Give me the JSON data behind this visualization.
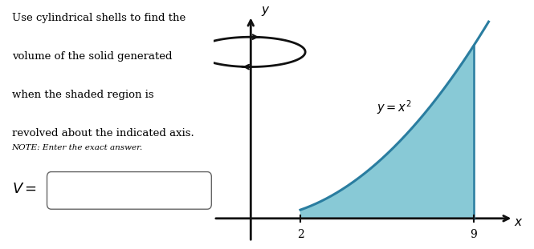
{
  "title_lines": [
    "Use cylindrical shells to find the",
    "volume of the solid generated",
    "when the shaded region is",
    "revolved about the indicated axis."
  ],
  "note_text": "NOTE: Enter the exact answer.",
  "v_label": "V =",
  "equation_label": "y = x^2",
  "x_min": 2,
  "x_max": 9,
  "shade_color": "#7bc4d2",
  "curve_color": "#2a7da0",
  "axis_color": "#111111",
  "background_color": "#ffffff",
  "rotation_arrow_color": "#111111",
  "plot_xlim": [
    -1.5,
    11.0
  ],
  "plot_ylim": [
    -12,
    100
  ],
  "figsize": [
    6.65,
    3.11
  ],
  "dpi": 100
}
